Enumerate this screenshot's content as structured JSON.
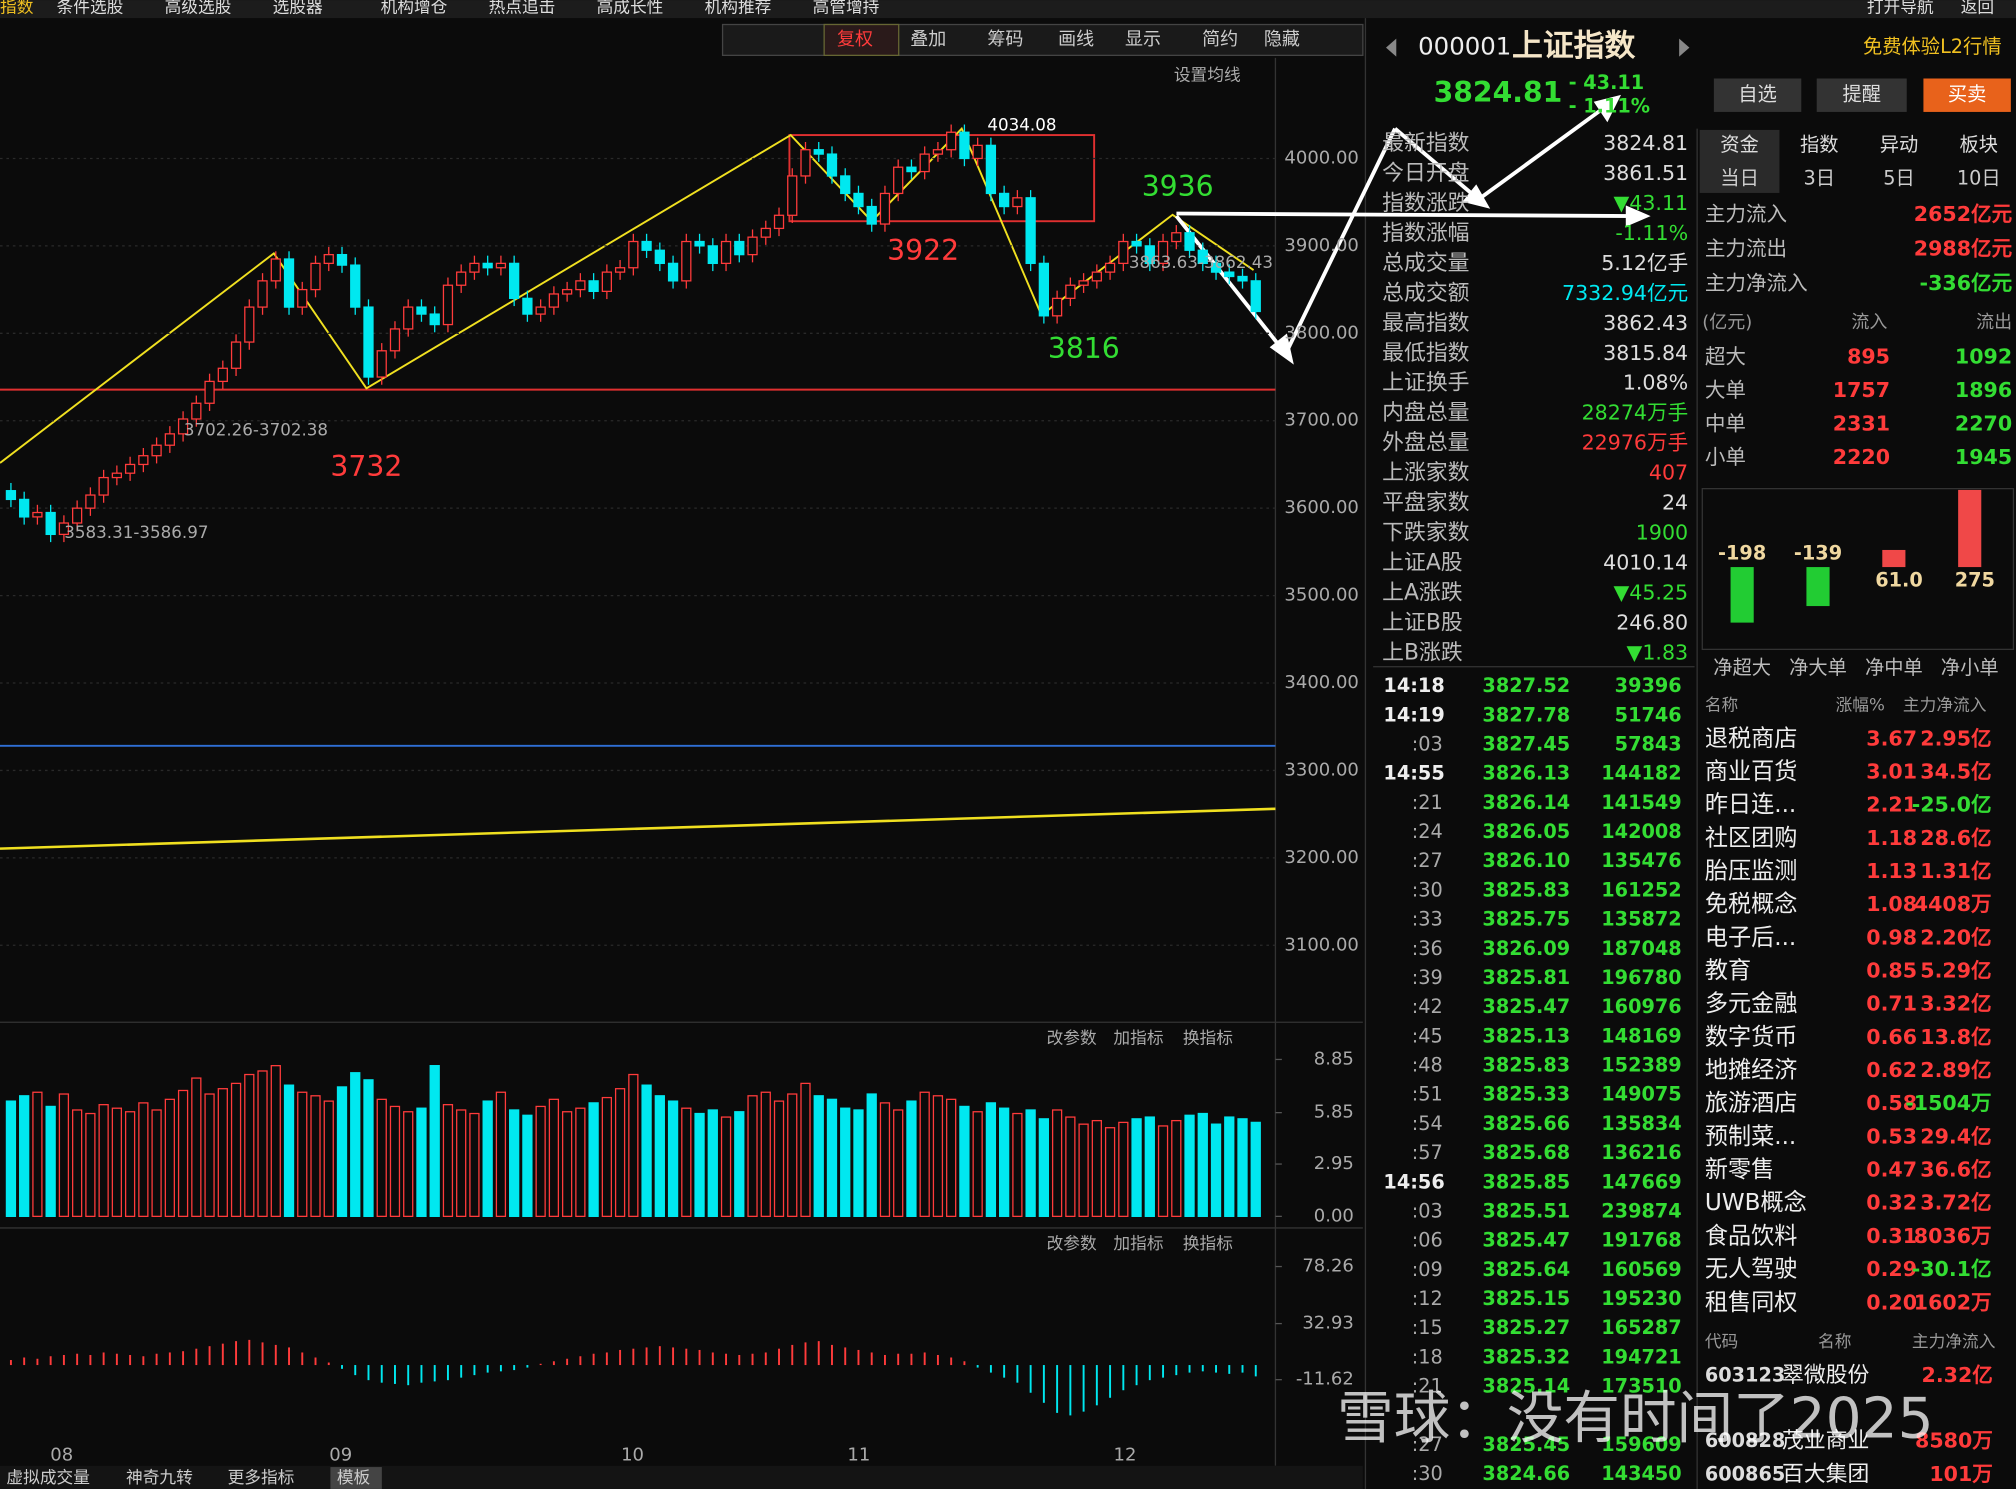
{
  "top_menu": {
    "left": [
      "指数",
      "条件选股",
      "高级选股",
      "选股器",
      "机构增仓",
      "热点追击",
      "高成长性",
      "机构推荐",
      "高管增持"
    ],
    "right": [
      "打开导航",
      "返回"
    ]
  },
  "toolbar": [
    "复权",
    "叠加",
    "筹码",
    "画线",
    "显示",
    "简约",
    "隐藏"
  ],
  "chart": {
    "type": "candlestick",
    "ma_setting": "设置均线",
    "x_labels": [
      "08",
      "09",
      "10",
      "11",
      "12"
    ],
    "opens": [
      3620,
      3610,
      3590,
      3595,
      3570,
      3583,
      3600,
      3615,
      3635,
      3640,
      3650,
      3660,
      3672,
      3685,
      3702,
      3720,
      3745,
      3760,
      3790,
      3830,
      3860,
      3885,
      3830,
      3850,
      3880,
      3890,
      3878,
      3830,
      3750,
      3780,
      3805,
      3830,
      3822,
      3810,
      3855,
      3870,
      3880,
      3875,
      3880,
      3840,
      3822,
      3830,
      3845,
      3850,
      3860,
      3848,
      3870,
      3875,
      3905,
      3895,
      3880,
      3860,
      3905,
      3900,
      3880,
      3905,
      3890,
      3910,
      3920,
      3935,
      3980,
      4010,
      4005,
      3980,
      3960,
      3945,
      3925,
      3960,
      3990,
      3985,
      4005,
      4010,
      4030,
      4000,
      4015,
      3960,
      3945,
      3955,
      3880,
      3820,
      3840,
      3855,
      3860,
      3870,
      3880,
      3905,
      3900,
      3880,
      3905,
      3915,
      3895,
      3880,
      3870,
      3865,
      3860
    ],
    "closes": [
      3610,
      3590,
      3595,
      3570,
      3583,
      3600,
      3615,
      3635,
      3640,
      3650,
      3660,
      3672,
      3685,
      3702,
      3720,
      3745,
      3760,
      3790,
      3830,
      3860,
      3885,
      3830,
      3850,
      3880,
      3890,
      3878,
      3830,
      3750,
      3780,
      3805,
      3830,
      3822,
      3810,
      3855,
      3870,
      3880,
      3875,
      3880,
      3840,
      3822,
      3830,
      3845,
      3850,
      3860,
      3848,
      3870,
      3875,
      3905,
      3895,
      3880,
      3860,
      3905,
      3900,
      3880,
      3905,
      3890,
      3910,
      3920,
      3935,
      3980,
      4010,
      4005,
      3980,
      3960,
      3945,
      3925,
      3960,
      3990,
      3985,
      4005,
      4010,
      4030,
      4000,
      4015,
      3960,
      3945,
      3955,
      3880,
      3820,
      3840,
      3855,
      3860,
      3870,
      3880,
      3905,
      3900,
      3880,
      3905,
      3915,
      3895,
      3880,
      3870,
      3865,
      3860,
      3825
    ],
    "ylim": [
      3012,
      4115
    ],
    "yticks": [
      {
        "value": 4000,
        "label": "4000.00"
      },
      {
        "value": 3900,
        "label": "3900.00"
      },
      {
        "value": 3800,
        "label": "3800.00"
      },
      {
        "value": 3700,
        "label": "3700.00"
      },
      {
        "value": 3600,
        "label": "3600.00"
      },
      {
        "value": 3500,
        "label": "3500.00"
      },
      {
        "value": 3400,
        "label": "3400.00"
      },
      {
        "value": 3300,
        "label": "3300.00"
      },
      {
        "value": 3200,
        "label": "3200.00"
      },
      {
        "value": 3100,
        "label": "3100.00"
      }
    ],
    "annotations": [
      "4034.08",
      "3922",
      "3936",
      "3816",
      "3732",
      "3702.26-3702.38",
      "3583.31-3586.97",
      "3863.63-3862.43"
    ]
  },
  "volume": {
    "buttons": [
      "改参数",
      "加指标",
      "换指标"
    ],
    "ylim": [
      0,
      9.5
    ],
    "yticks": [
      8.85,
      5.85,
      2.95,
      {
        "value": 0,
        "label": "0.00"
      }
    ],
    "values": [
      6.5,
      6.8,
      7.0,
      6.2,
      6.9,
      6.0,
      5.8,
      6.3,
      6.1,
      5.9,
      6.4,
      6.0,
      6.6,
      7.1,
      7.8,
      6.9,
      7.2,
      7.5,
      8.0,
      8.2,
      8.5,
      7.4,
      7.0,
      6.8,
      6.5,
      7.3,
      8.1,
      7.7,
      6.6,
      6.2,
      5.9,
      6.1,
      8.5,
      6.3,
      6.0,
      5.8,
      6.5,
      7.0,
      6.0,
      5.7,
      6.2,
      6.6,
      5.9,
      6.1,
      6.4,
      6.7,
      7.2,
      8.0,
      7.4,
      6.8,
      6.5,
      6.1,
      5.8,
      6.0,
      5.6,
      5.9,
      6.8,
      7.0,
      6.5,
      6.9,
      7.5,
      6.8,
      6.6,
      6.1,
      6.0,
      6.9,
      6.4,
      6.0,
      6.5,
      7.0,
      6.8,
      6.6,
      6.2,
      5.9,
      6.4,
      6.1,
      5.8,
      6.0,
      5.5,
      6.0,
      5.6,
      5.2,
      5.4,
      5.0,
      5.3,
      5.5,
      5.6,
      5.1,
      5.4,
      5.7,
      5.8,
      5.2,
      5.6,
      5.5,
      5.3
    ]
  },
  "macd": {
    "buttons": [
      "改参数",
      "加指标",
      "换指标"
    ],
    "ylim": [
      -64.7,
      88.5
    ],
    "yticks": [
      78.26,
      32.93,
      -11.62
    ],
    "values": [
      4,
      6,
      5,
      7,
      8,
      9,
      8,
      10,
      9,
      8,
      7,
      9,
      10,
      11,
      13,
      15,
      17,
      19,
      20,
      18,
      16,
      14,
      10,
      6,
      2,
      -3,
      -8,
      -12,
      -14,
      -15,
      -16,
      -14,
      -13,
      -12,
      -10,
      -8,
      -6,
      -5,
      -4,
      -2,
      1,
      3,
      5,
      7,
      9,
      10,
      12,
      13,
      14,
      15,
      14,
      13,
      12,
      10,
      9,
      8,
      9,
      10,
      13,
      16,
      18,
      19,
      16,
      14,
      12,
      10,
      8,
      9,
      9,
      10,
      8,
      6,
      3,
      -2,
      -6,
      -10,
      -14,
      -22,
      -30,
      -38,
      -40,
      -37,
      -32,
      -26,
      -20,
      -16,
      -12,
      -10,
      -8,
      -6,
      -5,
      -6,
      -7,
      -6,
      -9
    ]
  },
  "bottom_tabs": [
    "虚拟成交量",
    "神奇九转",
    "更多指标",
    "模板"
  ],
  "quote": {
    "code": "000001",
    "name": "上证指数",
    "price": "3824.81",
    "change": "- 43.11",
    "pct": "- 1.11%",
    "l2": "免费体验L2行情",
    "buttons": [
      "自选",
      "提醒",
      "买卖"
    ]
  },
  "stats": [
    [
      "最新指数",
      "3824.81"
    ],
    [
      "今日开盘",
      "3861.51"
    ],
    [
      "指数涨跌",
      "▼43.11"
    ],
    [
      "指数涨幅",
      "-1.11%"
    ],
    [
      "总成交量",
      "5.12亿手"
    ],
    [
      "总成交额",
      "7332.94亿元"
    ],
    [
      "最高指数",
      "3862.43"
    ],
    [
      "最低指数",
      "3815.84"
    ],
    [
      "上证换手",
      "1.08%"
    ],
    [
      "内盘总量",
      "28274万手"
    ],
    [
      "外盘总量",
      "22976万手"
    ],
    [
      "上涨家数",
      "407"
    ],
    [
      "平盘家数",
      "24"
    ],
    [
      "下跌家数",
      "1900"
    ],
    [
      "上证A股",
      "4010.14"
    ],
    [
      "上A涨跌",
      "▼45.25"
    ],
    [
      "上证B股",
      "246.80"
    ],
    [
      "上B涨跌",
      "▼1.83"
    ]
  ],
  "ticks": [
    [
      "14:18",
      "3827.52",
      "39396"
    ],
    [
      "14:19",
      "3827.78",
      "51746"
    ],
    [
      ":03",
      "3827.45",
      "57843"
    ],
    [
      "14:55",
      "3826.13",
      "144182"
    ],
    [
      ":21",
      "3826.14",
      "141549"
    ],
    [
      ":24",
      "3826.05",
      "142008"
    ],
    [
      ":27",
      "3826.10",
      "135476"
    ],
    [
      ":30",
      "3825.83",
      "161252"
    ],
    [
      ":33",
      "3825.75",
      "135872"
    ],
    [
      ":36",
      "3826.09",
      "187048"
    ],
    [
      ":39",
      "3825.81",
      "196780"
    ],
    [
      ":42",
      "3825.47",
      "160976"
    ],
    [
      ":45",
      "3825.13",
      "148169"
    ],
    [
      ":48",
      "3825.83",
      "152389"
    ],
    [
      ":51",
      "3825.33",
      "149075"
    ],
    [
      ":54",
      "3825.66",
      "135834"
    ],
    [
      ":57",
      "3825.68",
      "136216"
    ],
    [
      "14:56",
      "3825.85",
      "147669"
    ],
    [
      ":03",
      "3825.51",
      "239874"
    ],
    [
      ":06",
      "3825.47",
      "191768"
    ],
    [
      ":09",
      "3825.64",
      "160569"
    ],
    [
      ":12",
      "3825.15",
      "195230"
    ],
    [
      ":15",
      "3825.27",
      "165287"
    ],
    [
      ":18",
      "3825.32",
      "194721"
    ],
    [
      ":21",
      "3825.14",
      "173510"
    ],
    [
      ":27",
      "3825.45",
      "159609"
    ],
    [
      ":30",
      "3824.66",
      "143450"
    ]
  ],
  "funds": {
    "tabs": [
      "资金",
      "指数",
      "异动",
      "板块"
    ],
    "periods": [
      "当日",
      "3日",
      "5日",
      "10日"
    ],
    "summary": [
      [
        "主力流入",
        "2652亿元"
      ],
      [
        "主力流出",
        "2988亿元"
      ],
      [
        "主力净流入",
        "-336亿元"
      ]
    ],
    "flow_header": [
      "(亿元)",
      "流入",
      "流出"
    ],
    "flow": [
      [
        "超大",
        "895",
        "1092"
      ],
      [
        "大单",
        "1757",
        "1896"
      ],
      [
        "中单",
        "2331",
        "2270"
      ],
      [
        "小单",
        "2220",
        "1945"
      ]
    ],
    "net": {
      "type": "bar",
      "categories": [
        "净超大",
        "净大单",
        "净中单",
        "净小单"
      ],
      "values": [
        -198,
        -139,
        61,
        275
      ],
      "value_labels": [
        "-198",
        "-139",
        "61.0",
        "275"
      ]
    }
  },
  "sectors": {
    "header": [
      "名称",
      "涨幅%",
      "主力净流入"
    ],
    "rows": [
      [
        "退税商店",
        "3.67",
        "2.95亿"
      ],
      [
        "商业百货",
        "3.01",
        "34.5亿"
      ],
      [
        "昨日连...",
        "2.21",
        "-25.0亿"
      ],
      [
        "社区团购",
        "1.18",
        "28.6亿"
      ],
      [
        "胎压监测",
        "1.13",
        "1.31亿"
      ],
      [
        "免税概念",
        "1.08",
        "4408万"
      ],
      [
        "电子后...",
        "0.98",
        "2.20亿"
      ],
      [
        "教育",
        "0.85",
        "5.29亿"
      ],
      [
        "多元金融",
        "0.71",
        "3.32亿"
      ],
      [
        "数字货币",
        "0.66",
        "13.8亿"
      ],
      [
        "地摊经济",
        "0.62",
        "2.89亿"
      ],
      [
        "旅游酒店",
        "0.58",
        "-1504万"
      ],
      [
        "预制菜...",
        "0.53",
        "29.4亿"
      ],
      [
        "新零售",
        "0.47",
        "36.6亿"
      ],
      [
        "UWB概念",
        "0.32",
        "3.72亿"
      ],
      [
        "食品饮料",
        "0.31",
        "8036万"
      ],
      [
        "无人驾驶",
        "0.29",
        "-30.1亿"
      ],
      [
        "租售同权",
        "0.20",
        "1602万"
      ]
    ]
  },
  "stocks": {
    "header": [
      "代码",
      "名称",
      "主力净流入"
    ],
    "rows": [
      [
        "603123",
        "翠微股份",
        "2.32亿"
      ],
      [
        "600828",
        "茂业商业",
        "8580万"
      ],
      [
        "600865",
        "百大集团",
        "101万"
      ]
    ]
  },
  "watermark": "雪球：没有时间了2025"
}
